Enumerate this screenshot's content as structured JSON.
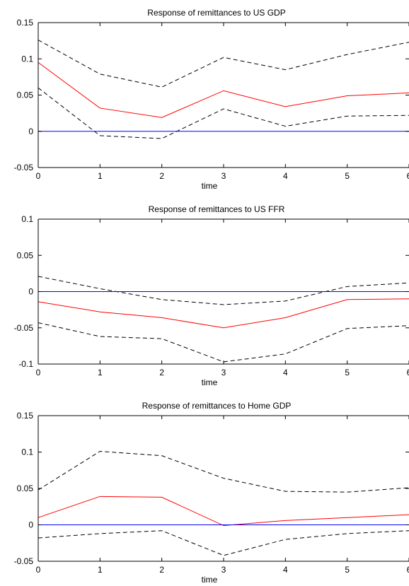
{
  "colors": {
    "response": "#ff0000",
    "bands": "#000000",
    "zero_line": "#0000ff",
    "axes": "#000000"
  },
  "chart_data": [
    {
      "type": "line",
      "title": "Response of remittances to US GDP",
      "xlabel": "time",
      "ylabel": "",
      "x": [
        0,
        1,
        2,
        3,
        4,
        5,
        6
      ],
      "xlim": [
        0,
        6
      ],
      "ylim": [
        -0.05,
        0.15
      ],
      "xticks": [
        "0",
        "1",
        "2",
        "3",
        "4",
        "5",
        "6"
      ],
      "yticks": [
        "-0.05",
        "0",
        "0.05",
        "0.1",
        "0.15"
      ],
      "ytick_values": [
        -0.05,
        0,
        0.05,
        0.1,
        0.15
      ],
      "grid": false,
      "series": [
        {
          "role": "response",
          "values": [
            0.095,
            0.032,
            0.019,
            0.056,
            0.034,
            0.049,
            0.053
          ]
        },
        {
          "role": "upper",
          "values": [
            0.126,
            0.079,
            0.061,
            0.102,
            0.085,
            0.106,
            0.123
          ]
        },
        {
          "role": "lower",
          "values": [
            0.06,
            -0.006,
            -0.01,
            0.031,
            0.007,
            0.021,
            0.022
          ]
        },
        {
          "role": "zero",
          "values": [
            0,
            0,
            0,
            0,
            0,
            0,
            0
          ]
        }
      ]
    },
    {
      "type": "line",
      "title": "Response of remittances to US FFR",
      "xlabel": "time",
      "ylabel": "",
      "x": [
        0,
        1,
        2,
        3,
        4,
        5,
        6
      ],
      "xlim": [
        0,
        6
      ],
      "ylim": [
        -0.1,
        0.1
      ],
      "xticks": [
        "0",
        "1",
        "2",
        "3",
        "4",
        "5",
        "6"
      ],
      "yticks": [
        "-0.1",
        "-0.05",
        "0",
        "0.05",
        "0.1"
      ],
      "ytick_values": [
        -0.1,
        -0.05,
        0,
        0.05,
        0.1
      ],
      "grid": false,
      "series": [
        {
          "role": "response",
          "values": [
            -0.014,
            -0.028,
            -0.036,
            -0.05,
            -0.036,
            -0.011,
            -0.01
          ]
        },
        {
          "role": "upper",
          "values": [
            0.021,
            0.004,
            -0.011,
            -0.018,
            -0.013,
            0.007,
            0.012
          ]
        },
        {
          "role": "lower",
          "values": [
            -0.043,
            -0.062,
            -0.065,
            -0.097,
            -0.086,
            -0.051,
            -0.047
          ]
        },
        {
          "role": "zero",
          "values": [
            0,
            0,
            0,
            0,
            0,
            0,
            0
          ]
        }
      ]
    },
    {
      "type": "line",
      "title": "Response of remittances to Home GDP",
      "xlabel": "time",
      "ylabel": "",
      "x": [
        0,
        1,
        2,
        3,
        4,
        5,
        6
      ],
      "xlim": [
        0,
        6
      ],
      "ylim": [
        -0.05,
        0.15
      ],
      "xticks": [
        "0",
        "1",
        "2",
        "3",
        "4",
        "5",
        "6"
      ],
      "yticks": [
        "-0.05",
        "0",
        "0.05",
        "0.1",
        "0.15"
      ],
      "ytick_values": [
        -0.05,
        0,
        0.05,
        0.1,
        0.15
      ],
      "grid": false,
      "series": [
        {
          "role": "response",
          "values": [
            0.01,
            0.039,
            0.038,
            -0.001,
            0.006,
            0.01,
            0.014
          ]
        },
        {
          "role": "upper",
          "values": [
            0.048,
            0.101,
            0.095,
            0.064,
            0.046,
            0.045,
            0.051
          ]
        },
        {
          "role": "lower",
          "values": [
            -0.018,
            -0.012,
            -0.008,
            -0.042,
            -0.02,
            -0.012,
            -0.008
          ]
        },
        {
          "role": "zero",
          "values": [
            0,
            0,
            0,
            0,
            0,
            0,
            0
          ]
        }
      ]
    }
  ]
}
